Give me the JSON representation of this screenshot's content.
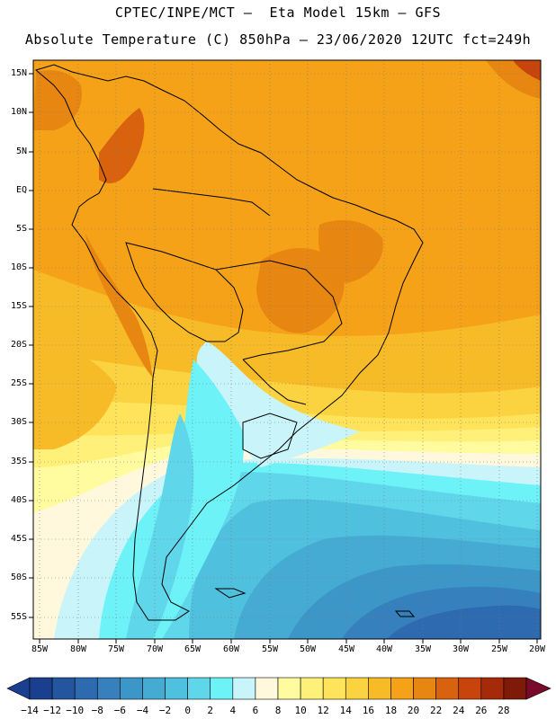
{
  "header": {
    "line1": "CPTEC/INPE/MCT –  Eta Model 15km – GFS",
    "line2": "Absolute Temperature (C) 850hPa – 23/06/2020 12UTC fct=249h"
  },
  "map": {
    "lat_labels": [
      "15N",
      "10N",
      "5N",
      "EQ",
      "5S",
      "10S",
      "15S",
      "20S",
      "25S",
      "30S",
      "35S",
      "40S",
      "45S",
      "50S",
      "55S"
    ],
    "lon_labels": [
      "85W",
      "80W",
      "75W",
      "70W",
      "65W",
      "60W",
      "55W",
      "50W",
      "45W",
      "40W",
      "35W",
      "30W",
      "25W",
      "20W"
    ]
  },
  "colorbar": {
    "labels": [
      "-14",
      "-12",
      "-10",
      "-8",
      "-6",
      "-4",
      "-2",
      "0",
      "2",
      "4",
      "6",
      "8",
      "10",
      "12",
      "14",
      "16",
      "18",
      "20",
      "22",
      "24",
      "26",
      "28"
    ],
    "colors": [
      "#1b3f8f",
      "#24559f",
      "#2d6ab0",
      "#3580bd",
      "#3d96c8",
      "#46abd3",
      "#4fc0de",
      "#5fd6ea",
      "#6df2f8",
      "#c8f4fa",
      "#fff8dc",
      "#fffb9e",
      "#fff07a",
      "#ffe35a",
      "#fbd23f",
      "#f8bb28",
      "#f5a218",
      "#e88612",
      "#d9620e",
      "#c7440c",
      "#a52a0a",
      "#7e1a08"
    ]
  }
}
